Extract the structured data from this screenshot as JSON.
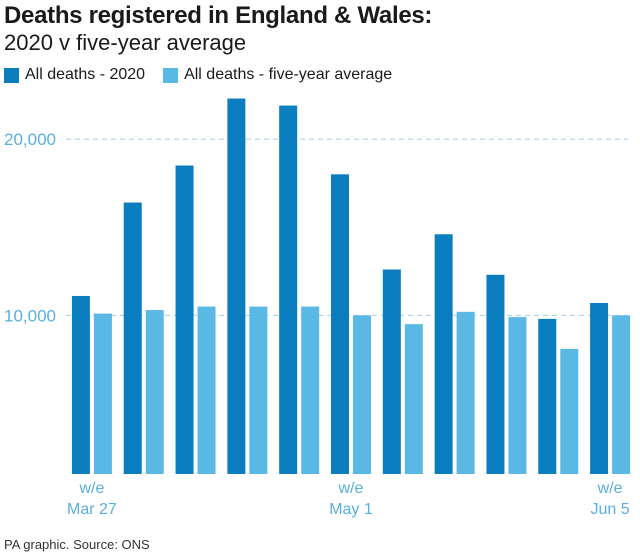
{
  "header": {
    "title": "Deaths registered in England & Wales:",
    "subtitle": "2020 v five-year average"
  },
  "footer": {
    "source": "PA graphic. Source: ONS"
  },
  "colors": {
    "series_2020": "#0a7dbf",
    "series_avg": "#5ab9e4",
    "grid": "#9fd0ee",
    "tick_text": "#5aaee0"
  },
  "chart_data": {
    "type": "bar",
    "categories": [
      "w/e Mar 27",
      "",
      "",
      "",
      "",
      "w/e May 1",
      "",
      "",
      "",
      "",
      "w/e Jun 5"
    ],
    "x_tick_labels": [
      {
        "index": 0,
        "line1": "w/e",
        "line2": "Mar 27"
      },
      {
        "index": 5,
        "line1": "w/e",
        "line2": "May 1"
      },
      {
        "index": 10,
        "line1": "w/e",
        "line2": "Jun 5"
      }
    ],
    "series": [
      {
        "name": "All deaths - 2020",
        "values": [
          11100,
          16400,
          18500,
          22300,
          21900,
          18000,
          12600,
          14600,
          12300,
          9800,
          10700
        ]
      },
      {
        "name": "All deaths - five-year average",
        "values": [
          10100,
          10300,
          10500,
          10500,
          10500,
          10000,
          9500,
          10200,
          9900,
          8100,
          10000
        ]
      }
    ],
    "yticks": [
      {
        "value": 10000,
        "label": "10,000"
      },
      {
        "value": 20000,
        "label": "20,000"
      }
    ],
    "ylim": [
      1000,
      22500
    ],
    "grid": "horizontal-dashed",
    "legend_position": "top-left",
    "title": "Deaths registered in England & Wales:",
    "subtitle": "2020 v five-year average",
    "xlabel": "",
    "ylabel": ""
  }
}
